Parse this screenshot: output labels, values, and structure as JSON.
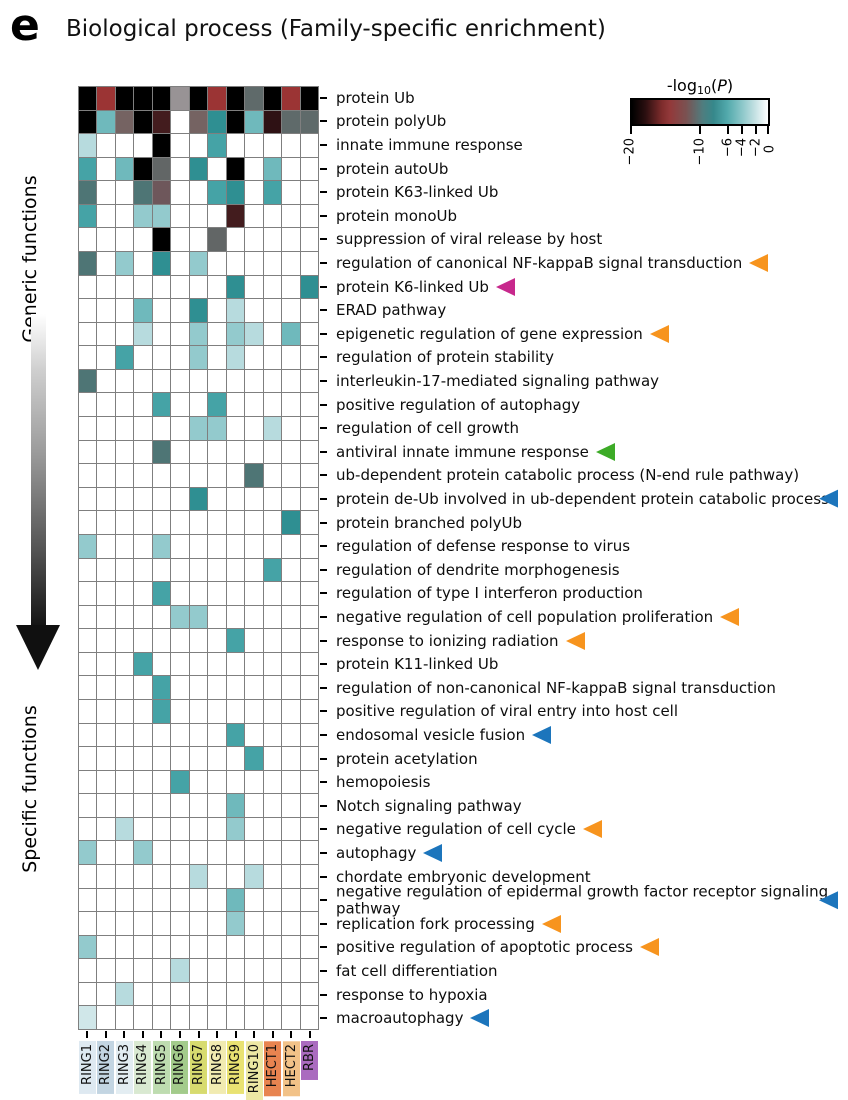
{
  "panel_label": "e",
  "title": "Biological process (Family-specific enrichment)",
  "left_axis": {
    "top_label": "Generic functions",
    "bottom_label": "Specific functions"
  },
  "colorbar": {
    "title_pre": "-log",
    "title_sub": "10",
    "title_open": "(",
    "title_var": "P",
    "title_close": ")",
    "range": [
      -20,
      0
    ],
    "tick_values": [
      -20,
      -10,
      -6,
      -4,
      -2,
      0
    ],
    "tick_labels": [
      "−20",
      "−10",
      "−6",
      "−4",
      "−2",
      "0"
    ],
    "gradient_stops": [
      "#000000",
      "#7e2c2c",
      "#93393a",
      "#7a5252",
      "#36888b",
      "#52a9ac",
      "#8cc7c9",
      "#ffffff"
    ]
  },
  "arrow_colors": {
    "orange": "#F7941E",
    "magenta": "#C7288C",
    "green": "#3DAB27",
    "blue": "#1C75BC"
  },
  "chart_data": {
    "type": "heatmap",
    "value_label": "-log10(P)",
    "value_range": [
      -20,
      0
    ],
    "columns": [
      {
        "label": "RING1",
        "bg": "#DEE9F1"
      },
      {
        "label": "RING2",
        "bg": "#C3D5E2"
      },
      {
        "label": "RING3",
        "bg": "#E3EDF2"
      },
      {
        "label": "RING4",
        "bg": "#D9E9D1"
      },
      {
        "label": "RING5",
        "bg": "#BEDCB0"
      },
      {
        "label": "RING6",
        "bg": "#A3CB8B"
      },
      {
        "label": "RING7",
        "bg": "#D7DB6F"
      },
      {
        "label": "RING8",
        "bg": "#F1EBB1"
      },
      {
        "label": "RING9",
        "bg": "#E9E272"
      },
      {
        "label": "RING10",
        "bg": "#EDE8A4"
      },
      {
        "label": "HECT1",
        "bg": "#E88450"
      },
      {
        "label": "HECT2",
        "bg": "#F2C288"
      },
      {
        "label": "RBR",
        "bg": "#AA6BBF"
      }
    ],
    "palette": {
      "K": "#000000",
      "R": "#9B3434",
      "E": "#431C1E",
      "Q": "#2E1114",
      "G": "#989395",
      "g": "#626666",
      "S": "#5F6A6A",
      "s": "#4E7575",
      "M": "#756362",
      "m": "#6E575B",
      "T": "#2F8F92",
      "t": "#45A3A6",
      "u": "#6FB9BC",
      "p": "#93CACD",
      "P": "#B7DBDE",
      "L": "#D0E7E9",
      ".": "#FFFFFF"
    },
    "rows": [
      {
        "label": "protein Ub",
        "cells": "KRKKKGKRKSKRK",
        "arrow": null
      },
      {
        "label": "protein polyUb",
        "cells": "KuMKE.MTKuQSS",
        "arrow": null
      },
      {
        "label": "innate immune response",
        "cells": "P...K..t.....",
        "arrow": null
      },
      {
        "label": "protein autoUb",
        "cells": "t.uKg.T.K.u..",
        "arrow": null
      },
      {
        "label": "protein K63-linked Ub",
        "cells": "s..sm..tT.t..",
        "arrow": null
      },
      {
        "label": "protein monoUb",
        "cells": "t..pp...E....",
        "arrow": null
      },
      {
        "label": "suppression of viral release by host",
        "cells": "....K..g.....",
        "arrow": null
      },
      {
        "label": "regulation of canonical NF-kappaB signal transduction",
        "cells": "s.p.T.p......",
        "arrow": "orange"
      },
      {
        "label": "protein K6-linked Ub",
        "cells": "........T...T",
        "arrow": "magenta"
      },
      {
        "label": "ERAD pathway",
        "cells": "...u..T.P....",
        "arrow": null
      },
      {
        "label": "epigenetic regulation of gene expression",
        "cells": "...P..p.pP.u.",
        "arrow": "orange"
      },
      {
        "label": "regulation of protein stability",
        "cells": "..t...p.P....",
        "arrow": null
      },
      {
        "label": "interleukin-17-mediated signaling pathway",
        "cells": "s............",
        "arrow": null
      },
      {
        "label": "positive regulation of autophagy",
        "cells": "....t..t.....",
        "arrow": null
      },
      {
        "label": "regulation of cell growth",
        "cells": "......pp..P..",
        "arrow": null
      },
      {
        "label": "antiviral innate immune response",
        "cells": "....s........",
        "arrow": "green"
      },
      {
        "label": "ub-dependent protein catabolic process (N-end rule pathway)",
        "cells": ".........s...",
        "arrow": null
      },
      {
        "label": "protein de-Ub involved in ub-dependent protein catabolic process",
        "cells": "......T......",
        "arrow": "blue"
      },
      {
        "label": "protein branched polyUb",
        "cells": "...........T.",
        "arrow": null
      },
      {
        "label": "regulation of defense response to virus",
        "cells": "p...p........",
        "arrow": null
      },
      {
        "label": "regulation of dendrite morphogenesis",
        "cells": "..........t..",
        "arrow": null
      },
      {
        "label": "regulation of type I interferon production",
        "cells": "....t........",
        "arrow": null
      },
      {
        "label": "negative regulation of cell population proliferation",
        "cells": ".....pp......",
        "arrow": "orange"
      },
      {
        "label": "response to ionizing radiation",
        "cells": "........t....",
        "arrow": "orange"
      },
      {
        "label": "protein K11-linked Ub",
        "cells": "...t.........",
        "arrow": null
      },
      {
        "label": "regulation of non-canonical NF-kappaB signal transduction",
        "cells": "....t........",
        "arrow": null
      },
      {
        "label": "positive regulation of viral entry into host cell",
        "cells": "....t........",
        "arrow": null
      },
      {
        "label": "endosomal vesicle fusion",
        "cells": "........t....",
        "arrow": "blue"
      },
      {
        "label": "protein acetylation",
        "cells": ".........t...",
        "arrow": null
      },
      {
        "label": "hemopoiesis",
        "cells": ".....t.......",
        "arrow": null
      },
      {
        "label": "Notch signaling pathway",
        "cells": "........u....",
        "arrow": null
      },
      {
        "label": "negative regulation of cell cycle",
        "cells": "..P.....p....",
        "arrow": "orange"
      },
      {
        "label": "autophagy",
        "cells": "p..p.........",
        "arrow": "blue"
      },
      {
        "label": "chordate embryonic development",
        "cells": "......P..P...",
        "arrow": null
      },
      {
        "label": "negative regulation of epidermal growth factor receptor signaling pathway",
        "cells": "........u....",
        "arrow": "blue"
      },
      {
        "label": "replication fork processing",
        "cells": "........p....",
        "arrow": "orange"
      },
      {
        "label": "positive regulation of apoptotic process",
        "cells": "p............",
        "arrow": "orange"
      },
      {
        "label": "fat cell differentiation",
        "cells": ".....P.......",
        "arrow": null
      },
      {
        "label": "response to hypoxia",
        "cells": "..P..........",
        "arrow": null
      },
      {
        "label": "macroautophagy",
        "cells": "L............",
        "arrow": "blue"
      }
    ]
  }
}
